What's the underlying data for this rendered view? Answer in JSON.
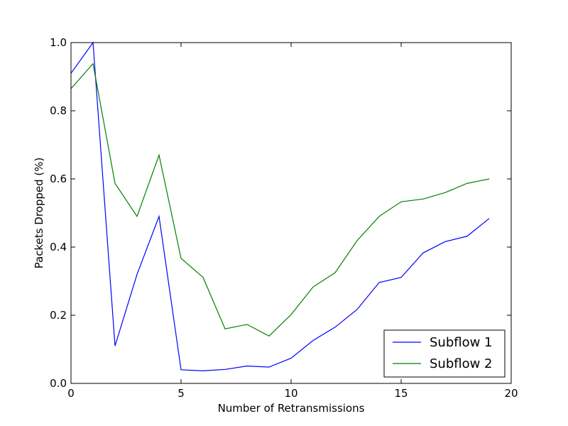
{
  "chart_data": {
    "type": "line",
    "title": "",
    "xlabel": "Number of Retransmissions",
    "ylabel": "Packets Dropped (%)",
    "xlim": [
      0,
      20
    ],
    "ylim": [
      0.0,
      1.0
    ],
    "xticks": [
      "0",
      "5",
      "10",
      "15",
      "20"
    ],
    "yticks": [
      "0.0",
      "0.2",
      "0.4",
      "0.6",
      "0.8",
      "1.0"
    ],
    "grid": false,
    "legend_position": "lower right",
    "x": [
      0,
      1,
      2,
      3,
      4,
      5,
      6,
      7,
      8,
      9,
      10,
      11,
      12,
      13,
      14,
      15,
      16,
      17,
      18,
      19
    ],
    "series": [
      {
        "name": "Subflow 1",
        "color": "#0000ff",
        "values": [
          0.91,
          1.0,
          0.11,
          0.32,
          0.49,
          0.04,
          0.037,
          0.041,
          0.051,
          0.048,
          0.074,
          0.126,
          0.165,
          0.217,
          0.296,
          0.311,
          0.383,
          0.416,
          0.432,
          0.484
        ]
      },
      {
        "name": "Subflow 2",
        "color": "#008000",
        "values": [
          0.865,
          0.938,
          0.587,
          0.49,
          0.67,
          0.367,
          0.311,
          0.16,
          0.173,
          0.139,
          0.202,
          0.283,
          0.325,
          0.419,
          0.49,
          0.533,
          0.541,
          0.56,
          0.587,
          0.6
        ]
      }
    ]
  }
}
